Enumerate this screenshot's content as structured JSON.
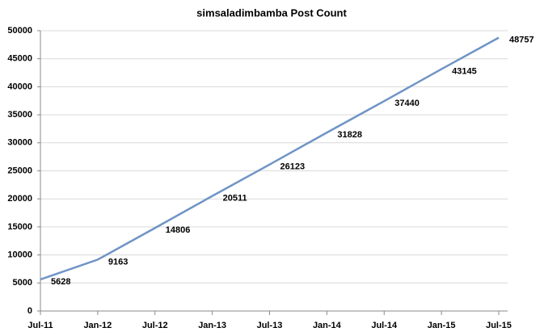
{
  "chart_data": {
    "type": "line",
    "title": "simsaladimbamba Post Count",
    "categories": [
      "Jul-11",
      "Jan-12",
      "Jul-12",
      "Jan-13",
      "Jul-13",
      "Jan-14",
      "Jul-14",
      "Jan-15",
      "Jul-15"
    ],
    "series": [
      {
        "name": "Post Count",
        "color": "#6f94c6",
        "values": [
          5628,
          9163,
          14806,
          20511,
          26123,
          31828,
          37440,
          43145,
          48757
        ]
      }
    ],
    "ylim": [
      0,
      50000
    ],
    "yticks": [
      0,
      5000,
      10000,
      15000,
      20000,
      25000,
      30000,
      35000,
      40000,
      45000,
      50000
    ],
    "grid": true,
    "data_labels": true
  }
}
